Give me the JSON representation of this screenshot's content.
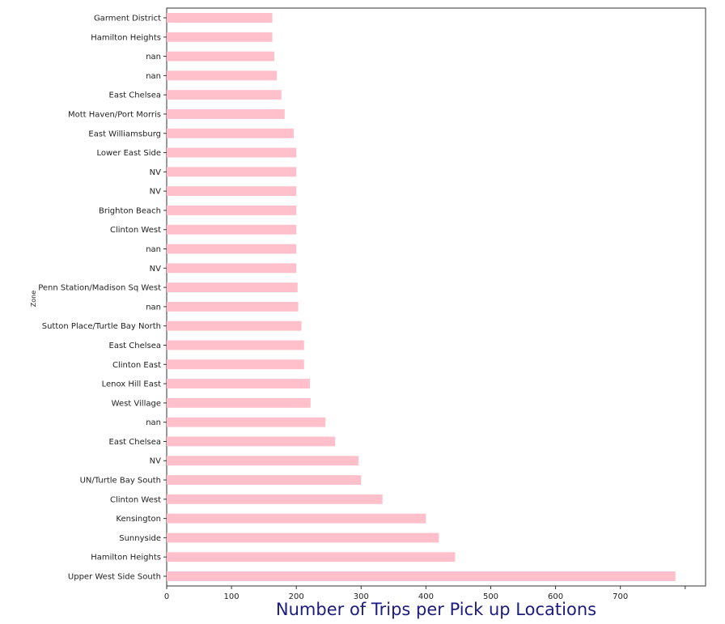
{
  "chart_data": {
    "type": "bar",
    "orientation": "horizontal",
    "title": "Number of Trips per Pick up Locations",
    "xlabel": "",
    "ylabel": "Zone",
    "xlim": [
      0,
      800
    ],
    "xticks": [
      "0",
      "100",
      "200",
      "300",
      "400",
      "500",
      "600",
      "700"
    ],
    "grid": false,
    "bar_color": "#ffc0cb",
    "title_color": "#1c1c80",
    "categories": [
      "Garment District",
      "Hamilton Heights",
      "nan",
      "nan",
      "East Chelsea",
      "Mott Haven/Port Morris",
      "East Williamsburg",
      "Lower East Side",
      "NV",
      "NV",
      "Brighton Beach",
      "Clinton West",
      "nan",
      "NV",
      "Penn Station/Madison Sq West",
      "nan",
      "Sutton Place/Turtle Bay North",
      "East Chelsea",
      "Clinton East",
      "Lenox Hill East",
      "West Village",
      "nan",
      "East Chelsea",
      "NV",
      "UN/Turtle Bay South",
      "Clinton West",
      "Kensington",
      "Sunnyside",
      "Hamilton Heights",
      "Upper West Side South"
    ],
    "values": [
      163,
      163,
      166,
      170,
      177,
      182,
      196,
      200,
      200,
      200,
      200,
      200,
      200,
      200,
      202,
      203,
      208,
      212,
      212,
      221,
      222,
      245,
      260,
      296,
      300,
      333,
      400,
      420,
      445,
      785
    ]
  }
}
